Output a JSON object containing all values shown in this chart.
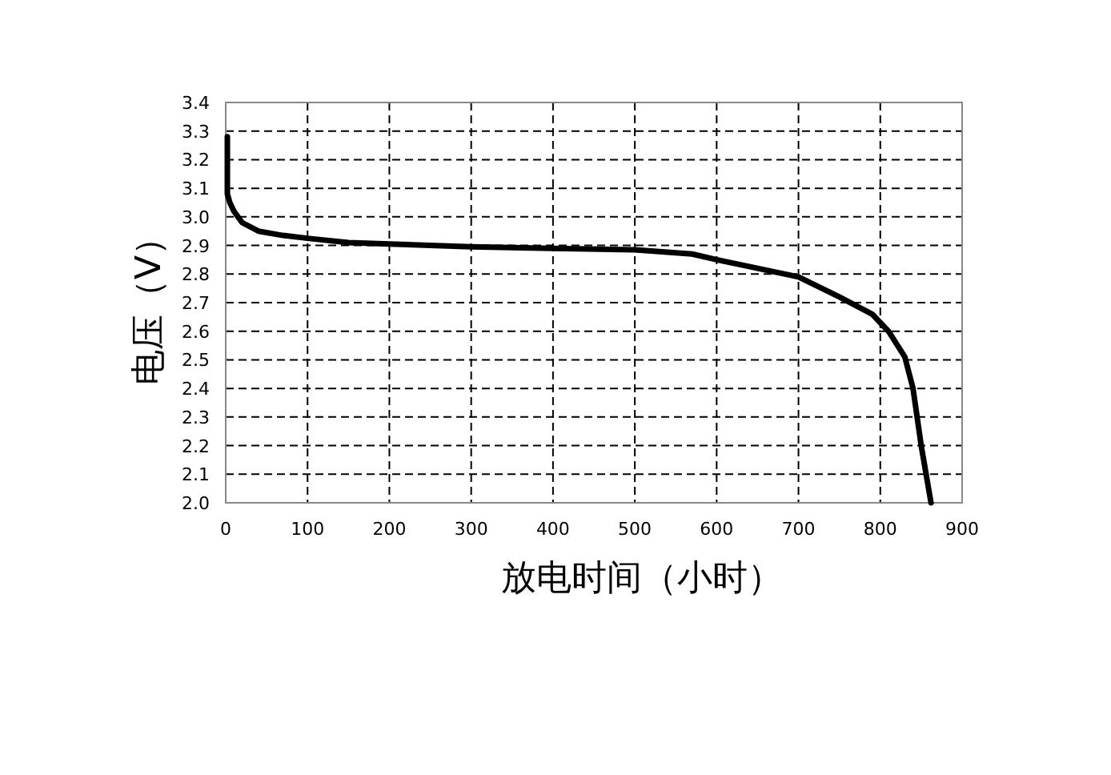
{
  "chart_data": {
    "type": "line",
    "xlabel": "放电时间（小时）",
    "ylabel": "电压（V）",
    "x": [
      2,
      2,
      5,
      10,
      20,
      40,
      70,
      100,
      150,
      200,
      300,
      400,
      500,
      570,
      600,
      650,
      700,
      750,
      790,
      810,
      830,
      840,
      850,
      862
    ],
    "series": [
      {
        "color": "#000000",
        "values": [
          3.28,
          3.08,
          3.05,
          3.02,
          2.98,
          2.95,
          2.935,
          2.925,
          2.91,
          2.905,
          2.895,
          2.89,
          2.885,
          2.87,
          2.85,
          2.82,
          2.79,
          2.72,
          2.66,
          2.6,
          2.51,
          2.4,
          2.2,
          2.0
        ]
      }
    ],
    "xlim": [
      0,
      900
    ],
    "xticks": [
      0,
      100,
      200,
      300,
      400,
      500,
      600,
      700,
      800,
      900
    ],
    "ylim": [
      2.0,
      3.4
    ],
    "yticks": [
      {
        "value": 2.0,
        "label": "2.0"
      },
      2.1,
      2.2,
      2.3,
      2.4,
      2.5,
      2.6,
      2.7,
      2.8,
      2.9,
      {
        "value": 3.0,
        "label": "3.0"
      },
      3.1,
      3.2,
      3.3,
      3.4
    ],
    "grid": true,
    "line_style": "solid",
    "marker": "none"
  }
}
